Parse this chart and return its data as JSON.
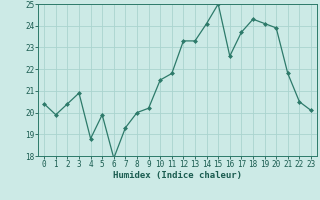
{
  "x": [
    0,
    1,
    2,
    3,
    4,
    5,
    6,
    7,
    8,
    9,
    10,
    11,
    12,
    13,
    14,
    15,
    16,
    17,
    18,
    19,
    20,
    21,
    22,
    23
  ],
  "y": [
    20.4,
    19.9,
    20.4,
    20.9,
    18.8,
    19.9,
    17.9,
    19.3,
    20.0,
    20.2,
    21.5,
    21.8,
    23.3,
    23.3,
    24.1,
    25.0,
    22.6,
    23.7,
    24.3,
    24.1,
    23.9,
    21.8,
    20.5,
    20.1
  ],
  "line_color": "#2d7a6a",
  "marker_color": "#2d7a6a",
  "bg_color": "#cceae6",
  "grid_color": "#aad4cf",
  "xlabel": "Humidex (Indice chaleur)",
  "ylim": [
    18,
    25
  ],
  "xlim": [
    -0.5,
    23.5
  ],
  "yticks": [
    18,
    19,
    20,
    21,
    22,
    23,
    24,
    25
  ],
  "label_color": "#1a5c50",
  "tick_color": "#1a5c50",
  "spine_color": "#2d7a6a",
  "font_size_label": 6.5,
  "font_size_tick": 5.5
}
